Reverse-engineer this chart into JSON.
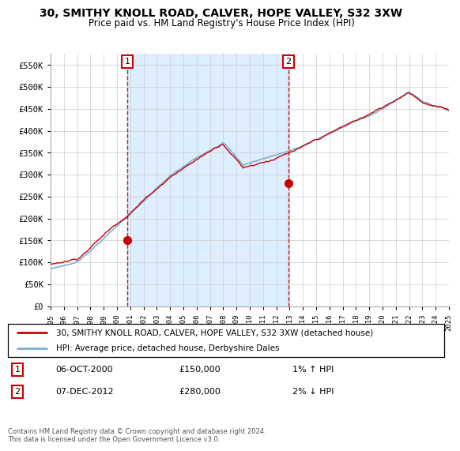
{
  "title": "30, SMITHY KNOLL ROAD, CALVER, HOPE VALLEY, S32 3XW",
  "subtitle": "Price paid vs. HM Land Registry's House Price Index (HPI)",
  "ylabel_ticks": [
    "£0",
    "£50K",
    "£100K",
    "£150K",
    "£200K",
    "£250K",
    "£300K",
    "£350K",
    "£400K",
    "£450K",
    "£500K",
    "£550K"
  ],
  "ytick_values": [
    0,
    50000,
    100000,
    150000,
    200000,
    250000,
    300000,
    350000,
    400000,
    450000,
    500000,
    550000
  ],
  "ylim": [
    0,
    575000
  ],
  "legend_line1": "30, SMITHY KNOLL ROAD, CALVER, HOPE VALLEY, S32 3XW (detached house)",
  "legend_line2": "HPI: Average price, detached house, Derbyshire Dales",
  "annotation1_date": "06-OCT-2000",
  "annotation1_price": "£150,000",
  "annotation1_hpi": "1% ↑ HPI",
  "annotation2_date": "07-DEC-2012",
  "annotation2_price": "£280,000",
  "annotation2_hpi": "2% ↓ HPI",
  "footer": "Contains HM Land Registry data © Crown copyright and database right 2024.\nThis data is licensed under the Open Government Licence v3.0.",
  "sale1_year": 2000.77,
  "sale1_price": 150000,
  "sale2_year": 2012.92,
  "sale2_price": 280000,
  "hpi_color": "#7bafd4",
  "price_color": "#cc0000",
  "annotation_color": "#cc0000",
  "shade_color": "#ddeeff",
  "background_color": "#ffffff",
  "grid_color": "#cccccc"
}
